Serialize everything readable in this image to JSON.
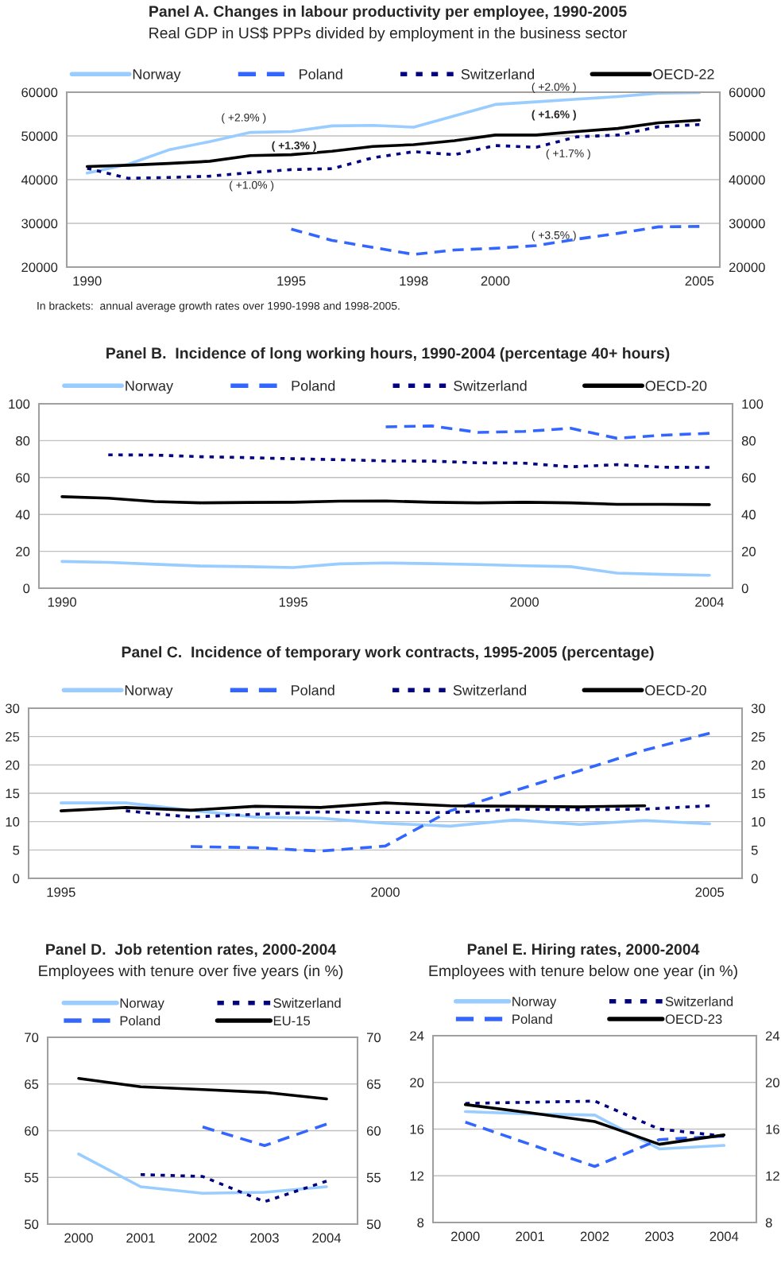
{
  "chart_data": [
    {
      "type": "line",
      "title": "Panel A. Changes in labour productivity per employee, 1990-2005",
      "subtitle": "Real GDP in US$ PPPs divided by employment in the business sector",
      "x": [
        1990,
        1991,
        1992,
        1993,
        1994,
        1995,
        1996,
        1997,
        1998,
        1999,
        2000,
        2001,
        2002,
        2003,
        2004,
        2005
      ],
      "series": [
        {
          "name": "Norway",
          "color": "#99ccff",
          "line_style": "solid",
          "values": [
            41500,
            43500,
            46800,
            48700,
            50800,
            51000,
            52300,
            52400,
            52000,
            54600,
            57200,
            57800,
            58400,
            59000,
            59800,
            59900
          ]
        },
        {
          "name": "Poland",
          "color": "#3366ff",
          "line_style": "dashed",
          "values": [
            null,
            null,
            null,
            null,
            null,
            28700,
            26100,
            24500,
            22900,
            23900,
            24300,
            24900,
            26400,
            27700,
            29200,
            29300
          ]
        },
        {
          "name": "Switzerland",
          "color": "#000080",
          "line_style": "dotted",
          "values": [
            42600,
            40300,
            40500,
            40800,
            41600,
            42300,
            42500,
            45000,
            46400,
            45700,
            47800,
            47400,
            49800,
            50200,
            52100,
            52600
          ]
        },
        {
          "name": "OECD-22",
          "color": "#000000",
          "line_style": "solid",
          "values": [
            43000,
            43300,
            43700,
            44200,
            45500,
            45700,
            46500,
            47600,
            48000,
            48900,
            50200,
            50200,
            51000,
            51700,
            53000,
            53600
          ]
        }
      ],
      "xlim": [
        1989.5,
        2005.5
      ],
      "xticks": [
        1990,
        1995,
        1998,
        2000,
        2005
      ],
      "ylim": [
        20000,
        60000
      ],
      "yticks": [
        20000,
        30000,
        40000,
        50000,
        60000
      ],
      "y2lim": [
        20000,
        60000
      ],
      "y2ticks": [
        20000,
        30000,
        40000,
        50000,
        60000
      ],
      "grid": "y",
      "legend": "top",
      "annotations": [
        "( +2.9% )",
        "( +1.3% )",
        "( +1.0% )",
        "( +2.0% )",
        "( +1.6% )",
        "( +1.7% )",
        "( +3.5% )",
        "In brackets:  annual average growth rates over 1990-1998 and 1998-2005."
      ]
    },
    {
      "type": "line",
      "title": "Panel B.  Incidence of long working hours, 1990-2004 (percentage 40+ hours)",
      "x": [
        1990,
        1991,
        1992,
        1993,
        1994,
        1995,
        1996,
        1997,
        1998,
        1999,
        2000,
        2001,
        2002,
        2003,
        2004
      ],
      "series": [
        {
          "name": "Norway",
          "color": "#99ccff",
          "line_style": "solid",
          "values": [
            14.5,
            14,
            13,
            12,
            11.7,
            11.2,
            13.2,
            13.7,
            13.3,
            12.8,
            12.2,
            11.7,
            8.2,
            7.5,
            7
          ]
        },
        {
          "name": "Poland",
          "color": "#3366ff",
          "line_style": "dashed",
          "values": [
            null,
            null,
            null,
            null,
            null,
            null,
            null,
            87.5,
            88,
            84.5,
            85,
            86.7,
            81.3,
            83,
            84
          ]
        },
        {
          "name": "Switzerland",
          "color": "#000080",
          "line_style": "dotted",
          "values": [
            null,
            72.3,
            72.2,
            71.3,
            70.8,
            70.2,
            69.7,
            69,
            68.9,
            68,
            67.8,
            65.8,
            67,
            65.6,
            65.5
          ]
        },
        {
          "name": "OECD-20",
          "color": "#000000",
          "line_style": "solid",
          "values": [
            49.6,
            48.8,
            47,
            46.3,
            46.5,
            46.6,
            47.2,
            47.3,
            46.6,
            46.3,
            46.6,
            46.3,
            45.5,
            45.5,
            45.3
          ]
        }
      ],
      "xlim": [
        1989.5,
        2004.5
      ],
      "xticks": [
        1990,
        1995,
        2000,
        2004
      ],
      "ylim": [
        0,
        100
      ],
      "yticks": [
        0,
        20,
        40,
        60,
        80,
        100
      ],
      "y2lim": [
        0,
        100
      ],
      "y2ticks": [
        0,
        20,
        40,
        60,
        80,
        100
      ],
      "grid": "y",
      "legend": "top"
    },
    {
      "type": "line",
      "title": "Panel C.  Incidence of temporary work contracts, 1995-2005 (percentage)",
      "x": [
        1995,
        1996,
        1997,
        1998,
        1999,
        2000,
        2001,
        2002,
        2003,
        2004,
        2005
      ],
      "series": [
        {
          "name": "Norway",
          "color": "#99ccff",
          "line_style": "solid",
          "values": [
            13.3,
            13.3,
            12,
            10.8,
            10.6,
            9.7,
            9.2,
            10.3,
            9.5,
            10.2,
            9.6
          ]
        },
        {
          "name": "Poland",
          "color": "#3366ff",
          "line_style": "dashed",
          "values": [
            null,
            null,
            5.6,
            5.4,
            4.8,
            5.7,
            11.9,
            15.5,
            19,
            22.6,
            25.6
          ]
        },
        {
          "name": "Switzerland",
          "color": "#000080",
          "line_style": "dotted",
          "values": [
            null,
            11.9,
            10.8,
            11.3,
            11.7,
            11.6,
            11.6,
            12.2,
            12.1,
            12.2,
            12.8
          ]
        },
        {
          "name": "OECD-20",
          "color": "#000000",
          "line_style": "solid",
          "values": [
            11.9,
            12.5,
            12,
            12.7,
            12.5,
            13.3,
            12.8,
            12.7,
            12.6,
            12.8,
            null
          ]
        }
      ],
      "xlim": [
        1994.5,
        2005.5
      ],
      "xticks": [
        1995,
        2000,
        2005
      ],
      "ylim": [
        0,
        30
      ],
      "yticks": [
        0,
        5,
        10,
        15,
        20,
        25,
        30
      ],
      "y2lim": [
        0,
        30
      ],
      "y2ticks": [
        0,
        5,
        10,
        15,
        20,
        25,
        30
      ],
      "grid": "y",
      "legend": "top"
    },
    {
      "type": "line",
      "title": "Panel D.  Job retention rates, 2000-2004",
      "subtitle": "Employees with tenure over five years (in %)",
      "categories": [
        "2000",
        "2001",
        "2002",
        "2003",
        "2004"
      ],
      "series": [
        {
          "name": "Norway",
          "color": "#99ccff",
          "line_style": "solid",
          "values": [
            57.5,
            54.0,
            53.3,
            53.4,
            54.0
          ]
        },
        {
          "name": "Poland",
          "color": "#3366ff",
          "line_style": "dashed",
          "values": [
            null,
            null,
            60.4,
            58.4,
            60.7
          ]
        },
        {
          "name": "Switzerland",
          "color": "#000080",
          "line_style": "dotted",
          "values": [
            null,
            55.3,
            55.1,
            52.4,
            54.6
          ]
        },
        {
          "name": "EU-15",
          "color": "#000000",
          "line_style": "solid",
          "values": [
            65.6,
            64.7,
            64.4,
            64.1,
            63.4
          ]
        }
      ],
      "ylim": [
        50,
        70
      ],
      "yticks": [
        50,
        55,
        60,
        65,
        70
      ],
      "y2lim": [
        50,
        70
      ],
      "y2ticks": [
        50,
        55,
        60,
        65,
        70
      ],
      "grid": "y",
      "legend": "top"
    },
    {
      "type": "line",
      "title": "Panel E. Hiring rates, 2000-2004",
      "subtitle": "Employees with tenure below one year (in %)",
      "categories": [
        "2000",
        "2001",
        "2002",
        "2003",
        "2004"
      ],
      "series": [
        {
          "name": "Norway",
          "color": "#99ccff",
          "line_style": "solid",
          "values": [
            17.5,
            17.3,
            17.2,
            14.3,
            14.6
          ]
        },
        {
          "name": "Poland",
          "color": "#3366ff",
          "line_style": "dashed",
          "values": [
            16.6,
            14.7,
            12.8,
            15.1,
            15.4
          ]
        },
        {
          "name": "Switzerland",
          "color": "#000080",
          "line_style": "dotted",
          "values": [
            18.2,
            18.3,
            18.4,
            16.0,
            15.4
          ]
        },
        {
          "name": "OECD-23",
          "color": "#000000",
          "line_style": "solid",
          "values": [
            18.1,
            17.4,
            16.65,
            14.7,
            15.5
          ]
        }
      ],
      "ylim": [
        8,
        24
      ],
      "yticks": [
        8,
        12,
        16,
        20,
        24
      ],
      "y2lim": [
        8,
        24
      ],
      "y2ticks": [
        8,
        12,
        16,
        20,
        24
      ],
      "grid": "y",
      "legend": "top"
    }
  ]
}
